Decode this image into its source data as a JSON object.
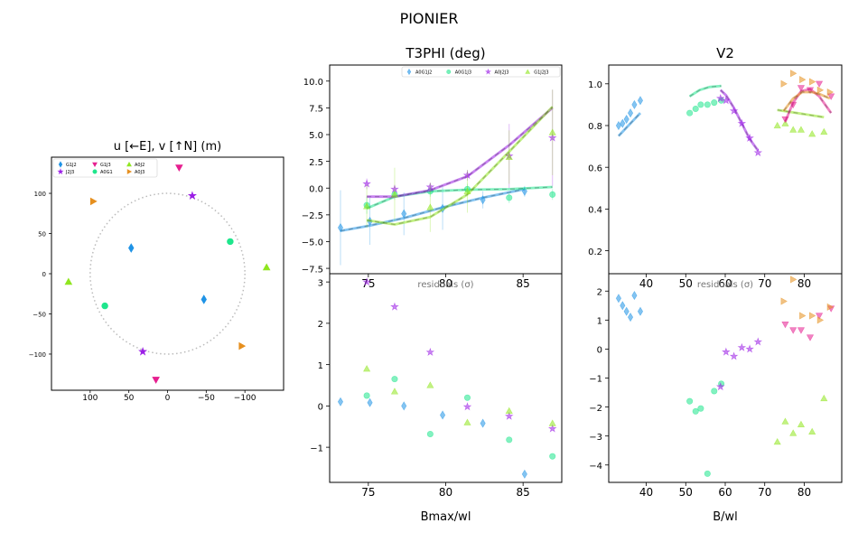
{
  "figure": {
    "title": "PIONIER"
  },
  "colors": {
    "G1J2": "#1f93e6",
    "A0G1": "#1ee68c",
    "J2J3": "#9b1ee6",
    "A0J2": "#8fe61e",
    "G1J3": "#e61e8f",
    "A0J3": "#e68f1e",
    "A0G1J2": "#1f93e6",
    "A0G1J3": "#1ee68c",
    "A0J2J3": "#9b1ee6",
    "G1J2J3": "#8fe61e",
    "V2_G1J2": "#1f93e6",
    "V2_A0G1": "#1ee68c",
    "V2_J2J3": "#9b1ee6",
    "V2_A0J2": "#8fe61e",
    "V2_G1J3": "#e61e8f",
    "V2_A0J3": "#e68f1e"
  },
  "chart_data": [
    {
      "id": "uv",
      "type": "scatter",
      "title": "u [←E], v [↑N] (m)",
      "xlim": [
        150,
        -150
      ],
      "ylim": [
        -145,
        145
      ],
      "xticks": [
        100,
        50,
        0,
        -50,
        -100
      ],
      "yticks": [
        100,
        50,
        0,
        -50,
        -100
      ],
      "circle_radius": 100,
      "legend": {
        "placement": "top-left",
        "labels": [
          "G1J2",
          "J2J3",
          "G1J3",
          "A0G1",
          "A0J2",
          "A0J3"
        ]
      },
      "series": [
        {
          "name": "G1J2",
          "marker": "diamond",
          "points": [
            [
              47,
              32
            ],
            [
              -47,
              -32
            ]
          ]
        },
        {
          "name": "A0G1",
          "marker": "circle",
          "points": [
            [
              -81,
              40
            ],
            [
              81,
              -40
            ]
          ]
        },
        {
          "name": "J2J3",
          "marker": "star",
          "points": [
            [
              -32,
              97
            ],
            [
              32,
              -97
            ]
          ]
        },
        {
          "name": "A0J2",
          "marker": "triangle-up",
          "points": [
            [
              -128,
              8
            ],
            [
              128,
              -10
            ]
          ]
        },
        {
          "name": "G1J3",
          "marker": "triangle-down",
          "points": [
            [
              -15,
              132
            ],
            [
              15,
              -132
            ]
          ]
        },
        {
          "name": "A0J3",
          "marker": "triangle-right",
          "points": [
            [
              96,
              90
            ],
            [
              -96,
              -90
            ]
          ]
        }
      ]
    },
    {
      "id": "t3",
      "type": "scatter",
      "title": "T3PHI (deg)",
      "xlim": [
        72.5,
        87.5
      ],
      "ylim": [
        -8,
        11.5
      ],
      "xticks": [
        75,
        80,
        85
      ],
      "yticks": [
        -7.5,
        -5.0,
        -2.5,
        0.0,
        2.5,
        5.0,
        7.5,
        10.0
      ],
      "legend": {
        "placement": "top-right",
        "labels": [
          "A0G1J2",
          "A0G1J3",
          "A0J2J3",
          "G1J2J3"
        ]
      },
      "series": [
        {
          "name": "A0G1J2",
          "marker": "diamond",
          "points": [
            [
              73.2,
              -3.7,
              3.5
            ],
            [
              75.1,
              -3.1,
              2.2
            ],
            [
              77.3,
              -2.4,
              2.0
            ],
            [
              79.8,
              -1.9,
              2.0
            ],
            [
              82.4,
              -1.1,
              0.8
            ],
            [
              85.1,
              -0.3,
              0.5
            ]
          ],
          "model": [
            [
              73.2,
              -4.0
            ],
            [
              75.1,
              -3.5
            ],
            [
              77.3,
              -2.8
            ],
            [
              79.8,
              -1.8
            ],
            [
              82.4,
              -0.9
            ],
            [
              85.1,
              -0.1
            ]
          ]
        },
        {
          "name": "A0G1J3",
          "marker": "circle",
          "points": [
            [
              74.9,
              -1.6,
              0.8
            ],
            [
              76.7,
              -0.6,
              0.5
            ],
            [
              79.0,
              -0.3,
              0.5
            ],
            [
              81.4,
              -0.1,
              0.5
            ],
            [
              84.1,
              -0.9,
              0.5
            ],
            [
              86.9,
              -0.6,
              0.5
            ]
          ],
          "model": [
            [
              74.9,
              -1.9
            ],
            [
              76.7,
              -0.8
            ],
            [
              79.0,
              -0.3
            ],
            [
              81.4,
              -0.15
            ],
            [
              84.1,
              -0.1
            ],
            [
              86.9,
              0.1
            ]
          ]
        },
        {
          "name": "A0J2J3",
          "marker": "star",
          "points": [
            [
              74.9,
              0.4,
              0.5
            ],
            [
              76.7,
              -0.1,
              0.4
            ],
            [
              79.0,
              0.1,
              0.4
            ],
            [
              81.4,
              1.2,
              0.5
            ],
            [
              84.1,
              3.0,
              3.0
            ],
            [
              86.9,
              4.7,
              4.5
            ]
          ],
          "model": [
            [
              74.9,
              -0.8
            ],
            [
              76.7,
              -0.8
            ],
            [
              79.0,
              -0.2
            ],
            [
              81.4,
              1.1
            ],
            [
              84.1,
              4.0
            ],
            [
              86.9,
              7.5
            ]
          ]
        },
        {
          "name": "G1J2J3",
          "marker": "triangle-up",
          "points": [
            [
              74.9,
              -1.7,
              2.0
            ],
            [
              76.7,
              -0.6,
              2.5
            ],
            [
              79.0,
              -1.8,
              2.3
            ],
            [
              81.4,
              -0.3,
              2.0
            ],
            [
              84.1,
              2.9,
              2.5
            ],
            [
              86.9,
              5.2,
              4.0
            ]
          ],
          "model": [
            [
              74.9,
              -3.0
            ],
            [
              76.7,
              -3.4
            ],
            [
              79.0,
              -2.7
            ],
            [
              81.4,
              -0.6
            ],
            [
              84.1,
              3.4
            ],
            [
              86.9,
              7.6
            ]
          ]
        }
      ]
    },
    {
      "id": "t3res",
      "type": "scatter",
      "title": "",
      "annotation": "residuals (σ)",
      "xlabel": "Bmax/wl",
      "xlim": [
        72.5,
        87.5
      ],
      "ylim": [
        -1.85,
        3.2
      ],
      "xticks": [
        75,
        80,
        85
      ],
      "yticks": [
        -1,
        0,
        1,
        2,
        3
      ],
      "series": [
        {
          "name": "A0G1J2",
          "marker": "diamond",
          "points": [
            [
              73.2,
              0.1
            ],
            [
              75.1,
              0.08
            ],
            [
              77.3,
              0.0
            ],
            [
              79.8,
              -0.22
            ],
            [
              82.4,
              -0.42
            ],
            [
              85.1,
              -1.65
            ]
          ]
        },
        {
          "name": "A0G1J3",
          "marker": "circle",
          "points": [
            [
              74.9,
              0.25
            ],
            [
              76.7,
              0.65
            ],
            [
              79.0,
              -0.68
            ],
            [
              81.4,
              0.2
            ],
            [
              84.1,
              -0.82
            ],
            [
              86.9,
              -1.22
            ]
          ]
        },
        {
          "name": "A0J2J3",
          "marker": "star",
          "points": [
            [
              74.9,
              3.0
            ],
            [
              76.7,
              2.4
            ],
            [
              79.0,
              1.3
            ],
            [
              81.4,
              -0.02
            ],
            [
              84.1,
              -0.25
            ],
            [
              86.9,
              -0.55
            ]
          ]
        },
        {
          "name": "G1J2J3",
          "marker": "triangle-up",
          "points": [
            [
              74.9,
              0.9
            ],
            [
              76.7,
              0.35
            ],
            [
              79.0,
              0.5
            ],
            [
              81.4,
              -0.4
            ],
            [
              84.1,
              -0.12
            ],
            [
              86.9,
              -0.42
            ]
          ]
        }
      ]
    },
    {
      "id": "v2",
      "type": "scatter",
      "title": "V2",
      "xlim": [
        30.5,
        89.5
      ],
      "ylim": [
        0.09,
        1.09
      ],
      "xticks": [
        40,
        50,
        60,
        70,
        80
      ],
      "yticks": [
        0.2,
        0.4,
        0.6,
        0.8,
        1.0
      ],
      "series": [
        {
          "name": "V2_G1J2",
          "marker": "diamond",
          "points": [
            [
              33.0,
              0.8
            ],
            [
              34.0,
              0.81
            ],
            [
              35.0,
              0.83
            ],
            [
              36.0,
              0.86
            ],
            [
              37.0,
              0.9
            ],
            [
              38.5,
              0.92
            ]
          ],
          "model": [
            [
              33.0,
              0.75
            ],
            [
              38.5,
              0.86
            ]
          ]
        },
        {
          "name": "V2_A0G1",
          "marker": "circle",
          "points": [
            [
              51.0,
              0.86
            ],
            [
              52.5,
              0.88
            ],
            [
              53.8,
              0.9
            ],
            [
              55.5,
              0.9
            ],
            [
              57.2,
              0.91
            ],
            [
              59.0,
              0.92
            ]
          ],
          "model": [
            [
              51.0,
              0.94
            ],
            [
              53.5,
              0.97
            ],
            [
              56.0,
              0.985
            ],
            [
              59.0,
              0.99
            ]
          ]
        },
        {
          "name": "V2_J2J3",
          "marker": "star",
          "points": [
            [
              58.8,
              0.93
            ],
            [
              60.2,
              0.92
            ],
            [
              62.2,
              0.87
            ],
            [
              64.2,
              0.81
            ],
            [
              66.2,
              0.74
            ],
            [
              68.3,
              0.67
            ]
          ],
          "model": [
            [
              58.8,
              0.97
            ],
            [
              60.2,
              0.945
            ],
            [
              62.2,
              0.885
            ],
            [
              64.2,
              0.81
            ],
            [
              66.2,
              0.735
            ],
            [
              68.3,
              0.68
            ]
          ]
        },
        {
          "name": "V2_A0J2",
          "marker": "triangle-up",
          "points": [
            [
              73.2,
              0.8
            ],
            [
              75.2,
              0.81
            ],
            [
              77.2,
              0.78
            ],
            [
              79.2,
              0.78
            ],
            [
              82.0,
              0.76
            ],
            [
              85.0,
              0.77
            ]
          ],
          "model": [
            [
              73.2,
              0.875
            ],
            [
              85.0,
              0.84
            ]
          ]
        },
        {
          "name": "V2_G1J3",
          "marker": "triangle-down",
          "points": [
            [
              75.2,
              0.83
            ],
            [
              77.2,
              0.9
            ],
            [
              79.2,
              0.98
            ],
            [
              81.5,
              0.97
            ],
            [
              83.8,
              1.0
            ],
            [
              86.8,
              0.94
            ]
          ],
          "model": [
            [
              75.2,
              0.82
            ],
            [
              77.2,
              0.91
            ],
            [
              79.2,
              0.965
            ],
            [
              81.5,
              0.975
            ],
            [
              83.8,
              0.94
            ],
            [
              86.8,
              0.86
            ]
          ]
        },
        {
          "name": "V2_A0J3",
          "marker": "triangle-right",
          "points": [
            [
              74.8,
              1.0
            ],
            [
              77.2,
              1.05
            ],
            [
              79.5,
              1.02
            ],
            [
              82.0,
              1.01
            ],
            [
              84.0,
              0.97
            ],
            [
              86.5,
              0.96
            ]
          ],
          "model": [
            [
              74.8,
              0.87
            ],
            [
              77.2,
              0.93
            ],
            [
              79.5,
              0.96
            ],
            [
              82.0,
              0.96
            ],
            [
              84.0,
              0.95
            ],
            [
              86.5,
              0.93
            ]
          ]
        }
      ]
    },
    {
      "id": "v2res",
      "type": "scatter",
      "title": "",
      "annotation": "residuals (σ)",
      "xlabel": "B/wl",
      "xlim": [
        30.5,
        89.5
      ],
      "ylim": [
        -4.6,
        2.6
      ],
      "xticks": [
        40,
        50,
        60,
        70,
        80
      ],
      "yticks": [
        -4,
        -3,
        -2,
        -1,
        0,
        1,
        2
      ],
      "series": [
        {
          "name": "V2_G1J2",
          "marker": "diamond",
          "points": [
            [
              33.0,
              1.75
            ],
            [
              34.0,
              1.5
            ],
            [
              35.0,
              1.3
            ],
            [
              36.0,
              1.1
            ],
            [
              37.0,
              1.85
            ],
            [
              38.5,
              1.3
            ]
          ]
        },
        {
          "name": "V2_A0G1",
          "marker": "circle",
          "points": [
            [
              51.0,
              -1.8
            ],
            [
              52.5,
              -2.15
            ],
            [
              53.8,
              -2.05
            ],
            [
              55.5,
              -4.3
            ],
            [
              57.2,
              -1.45
            ],
            [
              59.0,
              -1.2
            ]
          ]
        },
        {
          "name": "V2_J2J3",
          "marker": "star",
          "points": [
            [
              58.8,
              -1.3
            ],
            [
              60.2,
              -0.1
            ],
            [
              62.2,
              -0.25
            ],
            [
              64.2,
              0.05
            ],
            [
              66.2,
              0.0
            ],
            [
              68.3,
              0.25
            ]
          ]
        },
        {
          "name": "V2_A0J2",
          "marker": "triangle-up",
          "points": [
            [
              73.2,
              -3.2
            ],
            [
              75.2,
              -2.5
            ],
            [
              77.2,
              -2.9
            ],
            [
              79.2,
              -2.6
            ],
            [
              82.0,
              -2.85
            ],
            [
              85.0,
              -1.7
            ]
          ]
        },
        {
          "name": "V2_G1J3",
          "marker": "triangle-down",
          "points": [
            [
              75.2,
              0.85
            ],
            [
              77.2,
              0.65
            ],
            [
              79.2,
              0.65
            ],
            [
              81.5,
              0.4
            ],
            [
              83.8,
              1.15
            ],
            [
              86.8,
              1.4
            ]
          ]
        },
        {
          "name": "V2_A0J3",
          "marker": "triangle-right",
          "points": [
            [
              74.8,
              1.65
            ],
            [
              77.2,
              2.4
            ],
            [
              79.5,
              1.15
            ],
            [
              82.0,
              1.15
            ],
            [
              84.0,
              1.0
            ],
            [
              86.5,
              1.45
            ]
          ]
        }
      ]
    }
  ]
}
